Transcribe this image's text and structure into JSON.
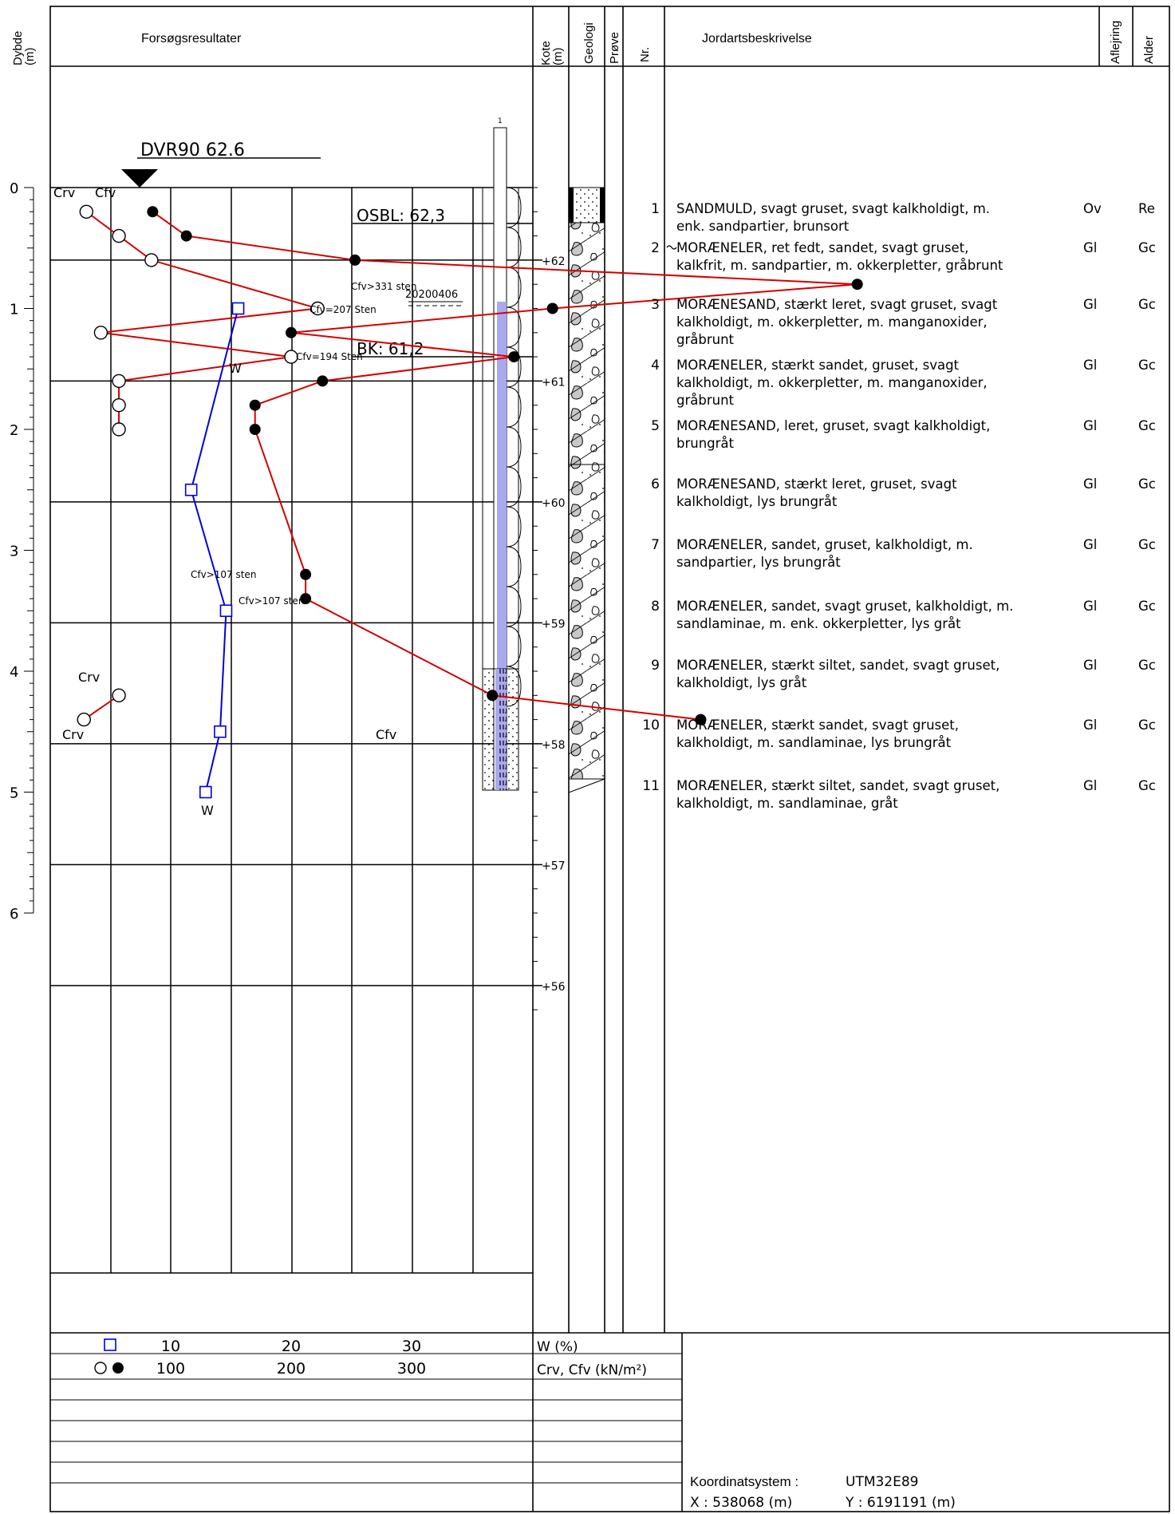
{
  "header": {
    "depth": "Dybde\n(m)",
    "results": "Forsøgsresultater",
    "kote": "Kote\n(m)",
    "geology": "Geologi",
    "sample": "Prøve",
    "nr": "Nr.",
    "description": "Jordartsbeskrivelse",
    "deposition": "Aflejring",
    "age": "Alder"
  },
  "chart_data": {
    "type": "scatter",
    "depth_axis": {
      "label": "Dybde (m)",
      "ticks": [
        0,
        1,
        2,
        3,
        4,
        5,
        6
      ],
      "range": [
        -1,
        9.5
      ]
    },
    "kote_axis": {
      "label": "Kote (m)",
      "ticks": [
        "+62",
        "+61",
        "+60",
        "+59",
        "+58",
        "+57",
        "+56"
      ],
      "values": [
        62,
        61,
        60,
        59,
        58,
        57,
        56
      ]
    },
    "x_axis_w": {
      "label": "W (%)",
      "ticks": [
        10,
        20,
        30
      ],
      "range": [
        0,
        40
      ]
    },
    "x_axis_c": {
      "label": "Crv, Cfv (kN/m²)",
      "ticks": [
        100,
        200,
        300
      ],
      "range": [
        0,
        400
      ]
    },
    "reference_level": "DVR90 62.6",
    "osbl": "OSBL: 62,3",
    "bk": "BK: 61,2",
    "date": "20200406",
    "screen_label": "1",
    "series": [
      {
        "name": "Crv",
        "marker": "open-circle",
        "color": "#d40000",
        "points": [
          [
            30,
            0.2
          ],
          [
            57,
            0.4
          ],
          [
            84,
            0.6
          ],
          [
            222,
            1.0
          ],
          [
            42,
            1.2
          ],
          [
            200,
            1.4
          ],
          [
            57,
            1.6
          ],
          [
            57,
            1.8
          ],
          [
            57,
            2.0
          ]
        ]
      },
      {
        "name": "Cfv",
        "marker": "filled-circle",
        "color": "#d40000",
        "points": [
          [
            85,
            0.2
          ],
          [
            113,
            0.4
          ],
          [
            253,
            0.6
          ],
          [
            670,
            0.8
          ],
          [
            417,
            1.0
          ],
          [
            200,
            1.2
          ],
          [
            385,
            1.4
          ],
          [
            226,
            1.6
          ],
          [
            170,
            1.8
          ],
          [
            170,
            2.0
          ],
          [
            212,
            3.2
          ],
          [
            212,
            3.4
          ],
          [
            367,
            4.2
          ],
          [
            540,
            4.4
          ]
        ]
      },
      {
        "name": "Crv",
        "marker": "open-circle",
        "color": "#d40000",
        "points": [
          [
            57,
            4.2
          ],
          [
            28,
            4.4
          ]
        ]
      },
      {
        "name": "W",
        "marker": "open-square",
        "color": "#0000dd",
        "points": [
          [
            15.6,
            1.0
          ],
          [
            11.7,
            2.5
          ],
          [
            14.6,
            3.5
          ],
          [
            14.1,
            4.5
          ],
          [
            12.9,
            5.0
          ]
        ]
      }
    ],
    "annotations": [
      {
        "text": "Crv",
        "depth": 0.1
      },
      {
        "text": "Cfv",
        "depth": 0.1
      },
      {
        "text": "W",
        "depth": 0.9
      },
      {
        "text": "Cfv>331 sten",
        "depth": 0.8
      },
      {
        "text": "Cfv=207 Sten",
        "depth": 1.0
      },
      {
        "text": "Cfv=194 Sten",
        "depth": 1.4
      },
      {
        "text": "Cfv>107 sten",
        "depth": 3.2
      },
      {
        "text": "Cfv>107 sten",
        "depth": 3.5
      },
      {
        "text": "Crv",
        "depth": 4.1
      },
      {
        "text": "Crv",
        "depth": 4.5
      },
      {
        "text": "Cfv",
        "depth": 4.5
      },
      {
        "text": "W",
        "depth": 5.15
      }
    ],
    "layers": [
      {
        "nr": "1",
        "top": 0.0,
        "bottom": 0.3,
        "text": [
          "SANDMULD, svagt gruset, svagt kalkholdigt, m.",
          "enk. sandpartier, brunsort"
        ],
        "aflejring": "Ov",
        "alder": "Re"
      },
      {
        "nr": "2",
        "top": 0.3,
        "bottom": 0.7,
        "text": [
          "MORÆNELER, ret fedt, sandet, svagt gruset,",
          "kalkfrit, m. sandpartier, m. okkerpletter, gråbrunt"
        ],
        "aflejring": "Gl",
        "alder": "Gc"
      },
      {
        "nr": "3",
        "top": 0.7,
        "bottom": 1.3,
        "text": [
          "MORÆNESAND, stærkt leret, svagt gruset, svagt",
          "kalkholdigt, m. okkerpletter, m. manganoxider,",
          "gråbrunt"
        ],
        "aflejring": "Gl",
        "alder": "Gc"
      },
      {
        "nr": "4",
        "top": 1.3,
        "bottom": 1.7,
        "text": [
          "MORÆNELER, stærkt sandet, gruset, svagt",
          "kalkholdigt, m. okkerpletter, m. manganoxider,",
          "gråbrunt"
        ],
        "aflejring": "Gl",
        "alder": "Gc"
      },
      {
        "nr": "5",
        "top": 1.7,
        "bottom": 2.3,
        "text": [
          "MORÆNESAND, leret, gruset, svagt kalkholdigt,",
          "brungråt"
        ],
        "aflejring": "Gl",
        "alder": "Gc"
      },
      {
        "nr": "6",
        "top": 2.3,
        "bottom": 2.8,
        "text": [
          "MORÆNESAND, stærkt leret, gruset, svagt",
          "kalkholdigt, lys brungråt"
        ],
        "aflejring": "Gl",
        "alder": "Gc"
      },
      {
        "nr": "7",
        "top": 2.8,
        "bottom": 3.3,
        "text": [
          "MORÆNELER, sandet, gruset, kalkholdigt, m.",
          "sandpartier, lys brungråt"
        ],
        "aflejring": "Gl",
        "alder": "Gc"
      },
      {
        "nr": "8",
        "top": 3.3,
        "bottom": 3.8,
        "text": [
          "MORÆNELER, sandet, svagt gruset, kalkholdigt, m.",
          "sandlaminae, m. enk. okkerpletter, lys gråt"
        ],
        "aflejring": "Gl",
        "alder": "Gc"
      },
      {
        "nr": "9",
        "top": 3.8,
        "bottom": 4.3,
        "text": [
          "MORÆNELER, stærkt siltet, sandet, svagt gruset,",
          "kalkholdigt, lys gråt"
        ],
        "aflejring": "Gl",
        "alder": "Gc"
      },
      {
        "nr": "10",
        "top": 4.3,
        "bottom": 4.8,
        "text": [
          "MORÆNELER, stærkt sandet, svagt gruset,",
          "kalkholdigt, m. sandlaminae, lys brungråt"
        ],
        "aflejring": "Gl",
        "alder": "Gc"
      },
      {
        "nr": "11",
        "top": 4.8,
        "bottom": 5.0,
        "text": [
          "MORÆNELER, stærkt siltet, sandet, svagt gruset,",
          "kalkholdigt, m. sandlaminae, gråt"
        ],
        "aflejring": "Gl",
        "alder": "Gc"
      }
    ]
  },
  "footer": {
    "w_label": "W (%)",
    "c_label": "Crv, Cfv (kN/m²)",
    "coord_label": "Koordinatsystem :",
    "coord_value": "UTM32E89",
    "x_coord": "X : 538068 (m)",
    "y_coord": "Y : 6191191 (m)"
  },
  "colors": {
    "red": "#d40000",
    "blue": "#0000dd",
    "water": "#a9a9ef"
  },
  "icons": [
    "reference-level-triangle-icon",
    "sample-marker-icon"
  ]
}
